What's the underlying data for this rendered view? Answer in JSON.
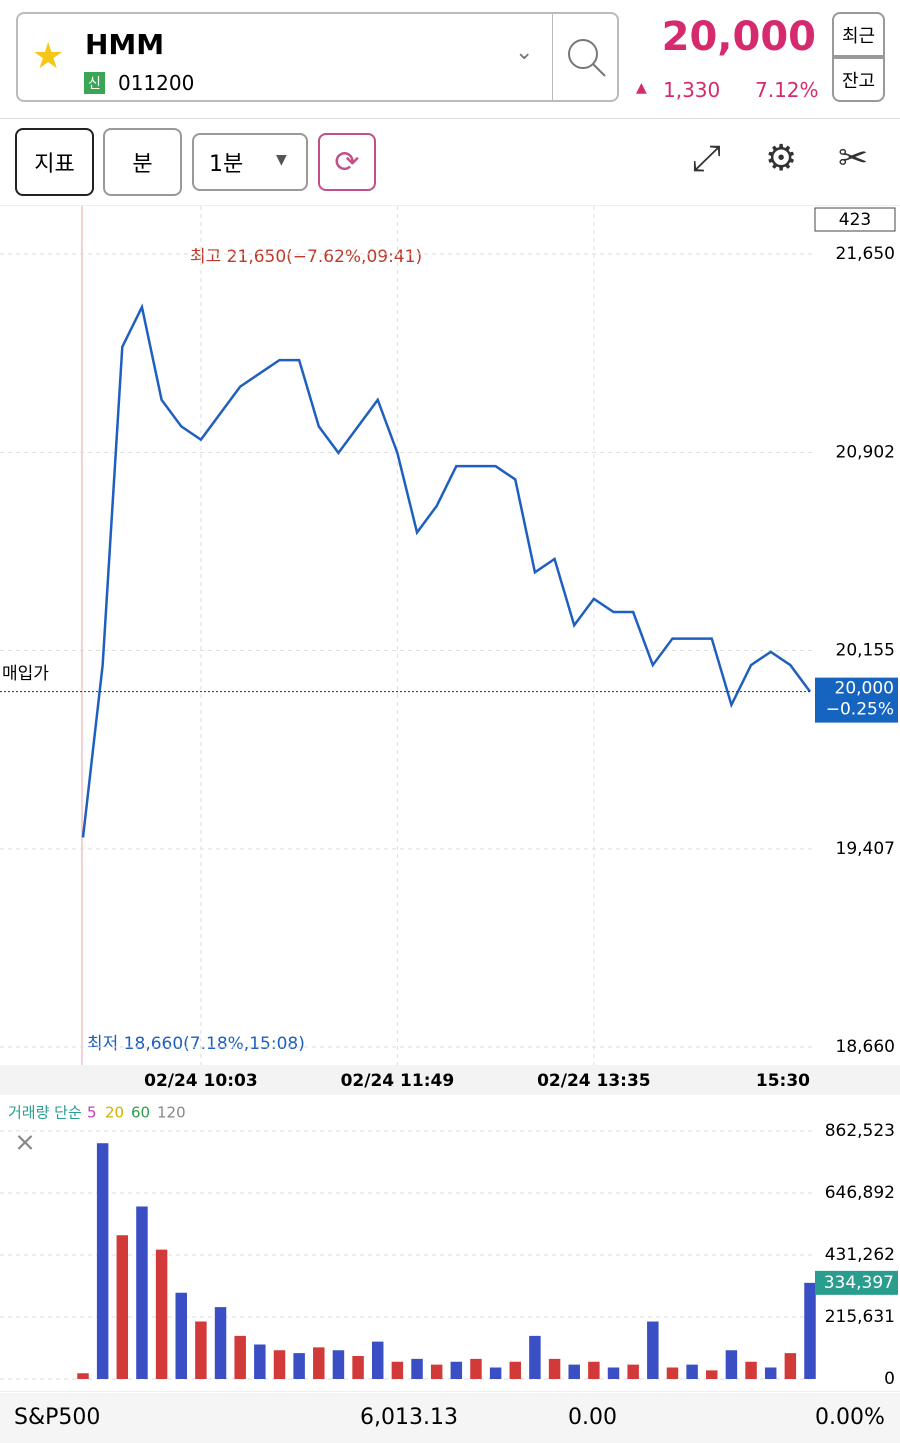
{
  "header": {
    "name": "HMM",
    "badge": "신",
    "code": "011200",
    "price": "20,000",
    "change": "1,330",
    "change_pct": "7.12%",
    "buttons": [
      "최근",
      "잔고"
    ]
  },
  "toolbar": {
    "buttons": [
      "지표",
      "분",
      "1분"
    ]
  },
  "chart_data": [
    {
      "type": "line",
      "color": "#1f5fbf",
      "categories": [
        null,
        null,
        null,
        null,
        null,
        null,
        "02/24 10:03",
        null,
        null,
        null,
        null,
        null,
        null,
        null,
        null,
        null,
        "02/24 11:49",
        null,
        null,
        null,
        null,
        null,
        null,
        null,
        null,
        null,
        "02/24 13:35",
        null,
        null,
        null,
        null,
        null,
        null,
        null,
        null,
        null,
        null,
        "15:30"
      ],
      "values": [
        19450,
        20100,
        21300,
        21450,
        21100,
        21000,
        20950,
        21050,
        21150,
        21200,
        21250,
        21250,
        21000,
        20900,
        21000,
        21100,
        20900,
        20600,
        20700,
        20850,
        20850,
        20850,
        20800,
        20450,
        20500,
        20250,
        20350,
        20300,
        20300,
        20100,
        20200,
        20200,
        20200,
        19950,
        20100,
        20150,
        20100,
        20000
      ],
      "value_labels": [
        null,
        null,
        null,
        null,
        null,
        null,
        null,
        null,
        null,
        null,
        null,
        null,
        null,
        null,
        null,
        null,
        null,
        null,
        null,
        null,
        null,
        null,
        null,
        null,
        null,
        null,
        null,
        null,
        null,
        null,
        null,
        null,
        null,
        null,
        null,
        null,
        null,
        "20,000"
      ],
      "ylim": [
        18660,
        21650
      ],
      "yticks": [
        {
          "value": 18660,
          "label": "18,660"
        },
        {
          "value": 19407,
          "label": "19,407"
        },
        {
          "value": 20155,
          "label": "20,155"
        },
        {
          "value": 20902,
          "label": "20,902"
        },
        {
          "value": 21650,
          "label": "21,650"
        }
      ],
      "grid": true,
      "annotations": {
        "high": "최고 21,650(−7.62%,09:41)",
        "low": "최저 18,660(7.18%,15:08)",
        "buy_price": "매입가",
        "last_change": "−0.25%",
        "counter": "423"
      }
    },
    {
      "type": "bar",
      "color": "#3a4fc4",
      "series_name": "거래량 단순",
      "ma_labels": [
        "5",
        "20",
        "60",
        "120"
      ],
      "values": [
        20000,
        820000,
        500000,
        600000,
        450000,
        300000,
        200000,
        250000,
        150000,
        120000,
        100000,
        90000,
        110000,
        100000,
        80000,
        130000,
        60000,
        70000,
        50000,
        60000,
        70000,
        40000,
        60000,
        150000,
        70000,
        50000,
        60000,
        40000,
        50000,
        200000,
        40000,
        50000,
        30000,
        100000,
        60000,
        40000,
        90000,
        334397
      ],
      "value_labels": [
        null,
        null,
        null,
        null,
        null,
        null,
        null,
        null,
        null,
        null,
        null,
        null,
        null,
        null,
        null,
        null,
        null,
        null,
        null,
        null,
        null,
        null,
        null,
        null,
        null,
        null,
        null,
        null,
        null,
        null,
        null,
        null,
        null,
        null,
        null,
        null,
        null,
        "334,397"
      ],
      "ylim": [
        0,
        862523
      ],
      "yticks": [
        0,
        {
          "value": 215631,
          "label": "215,631"
        },
        {
          "value": 431262,
          "label": "431,262"
        },
        {
          "value": 646892,
          "label": "646,892"
        },
        {
          "value": 862523,
          "label": "862,523"
        }
      ],
      "grid": true
    }
  ],
  "footer": {
    "index": "S&P500",
    "value": "6,013.13",
    "change": "0.00",
    "pct": "0.00%"
  }
}
